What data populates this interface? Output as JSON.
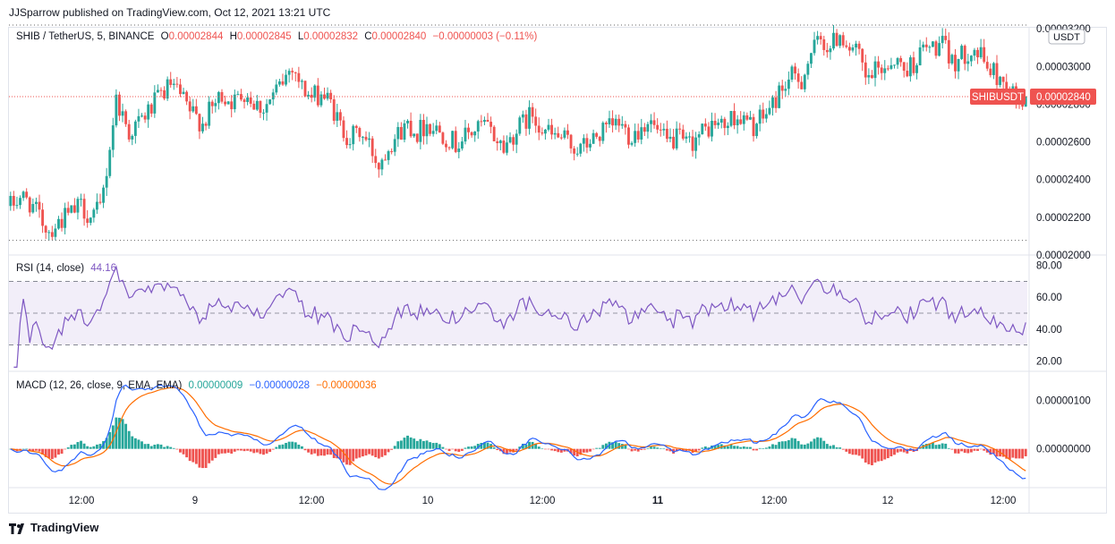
{
  "header": {
    "publisher_line": "JJSparrow published on TradingView.com, Oct 12, 2021 13:21 UTC"
  },
  "main": {
    "symbol": "SHIB / TetherUS, 5, BINANCE",
    "o_label": "O",
    "o_value": "0.00002844",
    "h_label": "H",
    "h_value": "0.00002845",
    "l_label": "L",
    "l_value": "0.00002832",
    "c_label": "C",
    "c_value": "0.00002840",
    "change": "−0.00000003 (−0.11%)",
    "currency": "USDT",
    "price_tag": "0.00002840",
    "symbol_tag": "SHIBUSDT"
  },
  "rsi": {
    "title": "RSI (14, close)",
    "value": "44.16"
  },
  "macd": {
    "title": "MACD (12, 26, close, 9, EMA, EMA)",
    "hist": "0.00000009",
    "macd": "−0.00000028",
    "signal": "−0.00000036"
  },
  "footer": {
    "brand": "TradingView"
  },
  "colors": {
    "up": "#26a69a",
    "down": "#ef5350",
    "rsi": "#7e57c2",
    "macd": "#2962ff",
    "signal": "#ff6d00",
    "price_tag_bg": "#ef5350"
  },
  "chart_data": [
    {
      "type": "candlestick",
      "title": "SHIB / TetherUS, 5, BINANCE",
      "x_ticks": [
        "12:00",
        "9",
        "12:00",
        "10",
        "12:00",
        "11",
        "12:00",
        "12",
        "12:00"
      ],
      "y_ticks": [
        "0.00002000",
        "0.00002200",
        "0.00002400",
        "0.00002600",
        "0.00002800",
        "0.00003000",
        "0.00003200"
      ],
      "ylim": [
        2e-05,
        3.21e-05
      ],
      "last_close": 2.84e-05,
      "path": [
        [
          0,
          2.26e-05
        ],
        [
          3,
          2.31e-05
        ],
        [
          6,
          2.28e-05
        ],
        [
          9,
          2.2e-05
        ],
        [
          12,
          2.13e-05
        ],
        [
          16,
          2.19e-05
        ],
        [
          19,
          2.22e-05
        ],
        [
          22,
          2.26e-05
        ],
        [
          25,
          2.2e-05
        ],
        [
          28,
          2.24e-05
        ],
        [
          30,
          2.45e-05
        ],
        [
          33,
          2.83e-05
        ],
        [
          37,
          2.65e-05
        ],
        [
          40,
          2.7e-05
        ],
        [
          44,
          2.78e-05
        ],
        [
          47,
          2.85e-05
        ],
        [
          50,
          2.9e-05
        ],
        [
          53,
          2.84e-05
        ],
        [
          56,
          2.76e-05
        ],
        [
          60,
          2.7e-05
        ],
        [
          63,
          2.78e-05
        ],
        [
          66,
          2.85e-05
        ],
        [
          70,
          2.81e-05
        ],
        [
          73,
          2.87e-05
        ],
        [
          76,
          2.81e-05
        ],
        [
          79,
          2.78e-05
        ],
        [
          82,
          2.84e-05
        ],
        [
          85,
          2.92e-05
        ],
        [
          88,
          3.01e-05
        ],
        [
          91,
          2.89e-05
        ],
        [
          94,
          2.83e-05
        ],
        [
          97,
          2.86e-05
        ],
        [
          100,
          2.8e-05
        ],
        [
          103,
          2.68e-05
        ],
        [
          106,
          2.62e-05
        ],
        [
          109,
          2.65e-05
        ],
        [
          112,
          2.58e-05
        ],
        [
          115,
          2.48e-05
        ],
        [
          118,
          2.59e-05
        ],
        [
          121,
          2.64e-05
        ],
        [
          124,
          2.7e-05
        ],
        [
          127,
          2.65e-05
        ],
        [
          130,
          2.7e-05
        ],
        [
          133,
          2.67e-05
        ],
        [
          136,
          2.63e-05
        ],
        [
          139,
          2.59e-05
        ],
        [
          142,
          2.63e-05
        ],
        [
          145,
          2.66e-05
        ],
        [
          148,
          2.69e-05
        ],
        [
          151,
          2.63e-05
        ],
        [
          154,
          2.57e-05
        ],
        [
          157,
          2.64e-05
        ],
        [
          160,
          2.7e-05
        ],
        [
          163,
          2.75e-05
        ],
        [
          166,
          2.68e-05
        ],
        [
          169,
          2.63e-05
        ],
        [
          172,
          2.62e-05
        ],
        [
          175,
          2.58e-05
        ],
        [
          178,
          2.56e-05
        ],
        [
          181,
          2.6e-05
        ],
        [
          184,
          2.64e-05
        ],
        [
          187,
          2.67e-05
        ],
        [
          190,
          2.7e-05
        ],
        [
          193,
          2.64e-05
        ],
        [
          196,
          2.66e-05
        ],
        [
          199,
          2.72e-05
        ],
        [
          202,
          2.65e-05
        ],
        [
          205,
          2.59e-05
        ],
        [
          208,
          2.62e-05
        ],
        [
          211,
          2.58e-05
        ],
        [
          214,
          2.62e-05
        ],
        [
          217,
          2.66e-05
        ],
        [
          220,
          2.7e-05
        ],
        [
          223,
          2.68e-05
        ],
        [
          226,
          2.74e-05
        ],
        [
          229,
          2.71e-05
        ],
        [
          232,
          2.68e-05
        ],
        [
          235,
          2.73e-05
        ],
        [
          238,
          2.8e-05
        ],
        [
          241,
          2.89e-05
        ],
        [
          244,
          2.94e-05
        ],
        [
          247,
          2.93e-05
        ],
        [
          250,
          3.07e-05
        ],
        [
          253,
          3.14e-05
        ],
        [
          256,
          3.1e-05
        ],
        [
          259,
          3.18e-05
        ],
        [
          262,
          3.1e-05
        ],
        [
          265,
          3.05e-05
        ],
        [
          267,
          2.92e-05
        ],
        [
          270,
          2.97e-05
        ],
        [
          273,
          3e-05
        ],
        [
          276,
          3.04e-05
        ],
        [
          279,
          2.98e-05
        ],
        [
          282,
          3.02e-05
        ],
        [
          285,
          3.09e-05
        ],
        [
          288,
          3.1e-05
        ],
        [
          291,
          3.11e-05
        ],
        [
          294,
          3.02e-05
        ],
        [
          297,
          3.05e-05
        ],
        [
          300,
          3.1e-05
        ],
        [
          303,
          3.05e-05
        ],
        [
          306,
          2.98e-05
        ],
        [
          309,
          2.93e-05
        ],
        [
          312,
          2.88e-05
        ],
        [
          315,
          2.8e-05
        ],
        [
          317,
          2.84e-05
        ]
      ]
    },
    {
      "type": "line",
      "title": "RSI (14, close)",
      "y_ticks": [
        "20.00",
        "40.00",
        "60.00",
        "80.00"
      ],
      "ylim": [
        14,
        86
      ],
      "bands": [
        30,
        50,
        70
      ],
      "last_value": 44.16
    },
    {
      "type": "line",
      "title": "MACD (12, 26, close, 9, EMA, EMA)",
      "y_ticks": [
        "0.00000000",
        "0.00000100"
      ],
      "ylim": [
        -8e-07,
        1.6e-06
      ],
      "last": {
        "hist": 9e-08,
        "macd": -2.8e-07,
        "signal": -3.6e-07
      }
    }
  ]
}
